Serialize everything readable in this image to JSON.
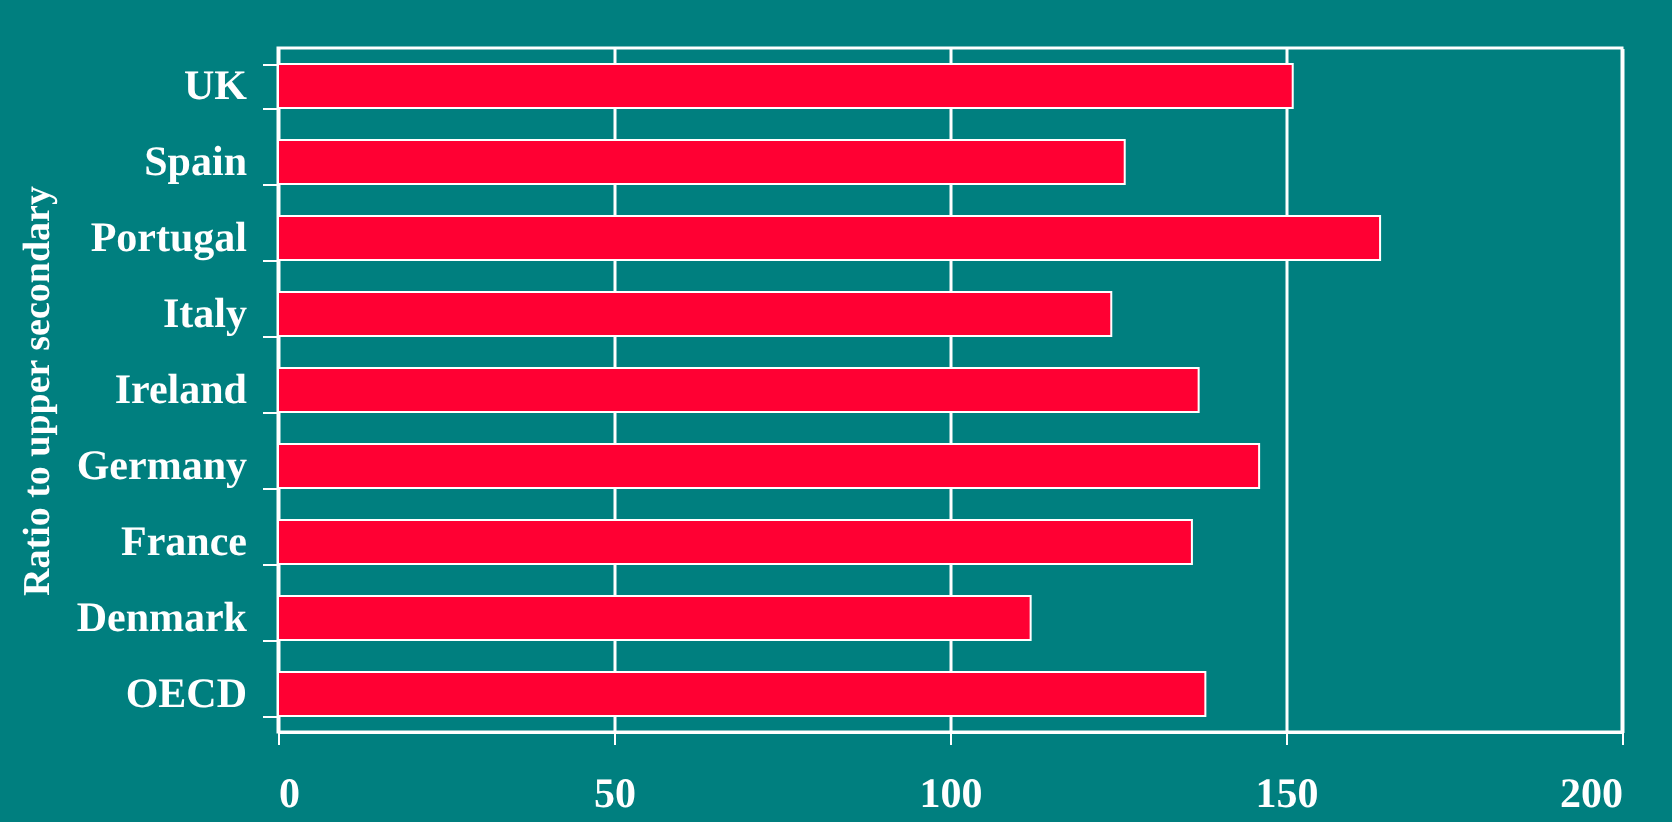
{
  "chart_data": {
    "type": "bar",
    "orientation": "horizontal",
    "ylabel": "Ratio to upper secondary",
    "categories": [
      "UK",
      "Spain",
      "Portugal",
      "Italy",
      "Ireland",
      "Germany",
      "France",
      "Denmark",
      "OECD"
    ],
    "values": [
      151,
      126,
      164,
      124,
      137,
      146,
      136,
      112,
      138
    ],
    "color": "#ff0033",
    "xlim": [
      0,
      200
    ],
    "xticks": [
      0,
      50,
      100,
      150,
      200
    ],
    "grid": "x"
  }
}
